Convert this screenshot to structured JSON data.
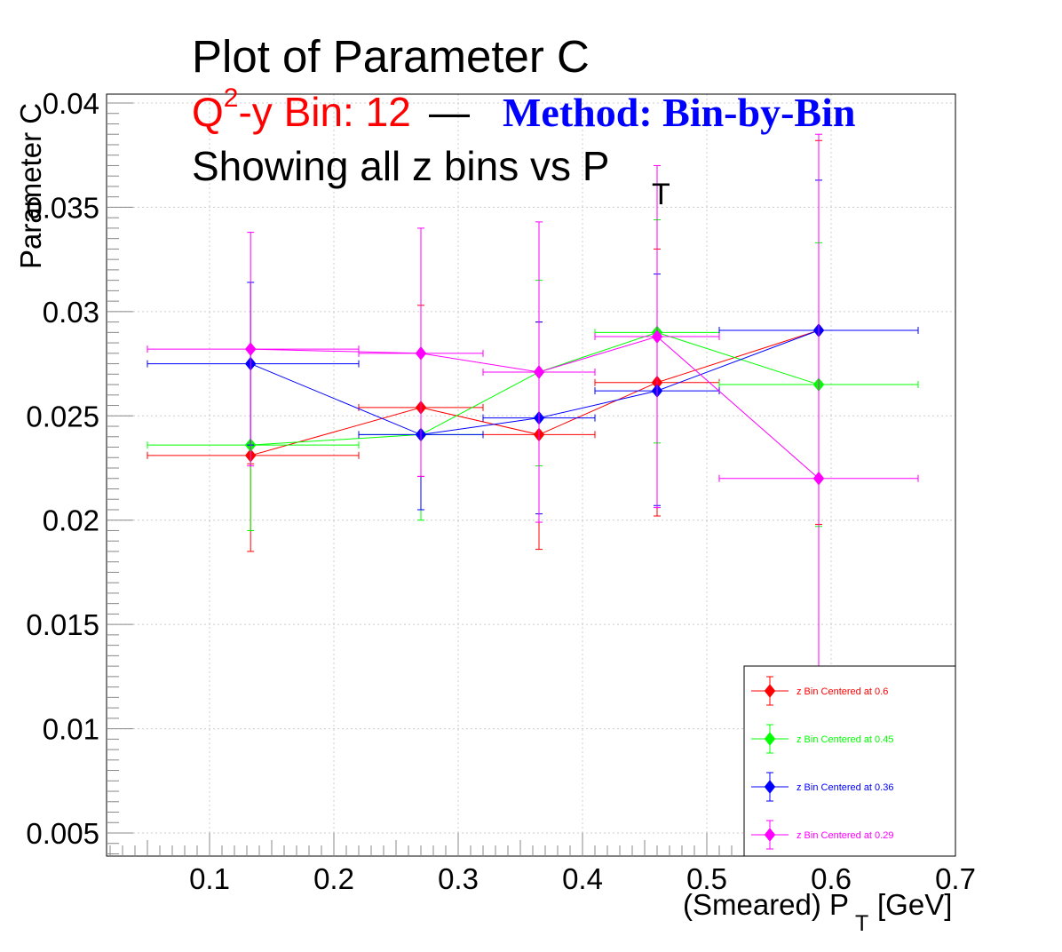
{
  "chart_data": {
    "type": "scatter",
    "title": "Plot of Parameter C",
    "subtitle": {
      "bin_label": "Q",
      "bin_label_sup": "2",
      "bin_label_rest": "-y Bin: 12",
      "dash": "—",
      "method": "Method: Bin-by-Bin",
      "line3": "Showing all z bins vs P",
      "line3_sub": "T"
    },
    "xlabel": "(Smeared) P",
    "xlabel_sub": "T",
    "xlabel_unit": "[GeV]",
    "ylabel": "Parameter C",
    "xlim": [
      0.015,
      0.7
    ],
    "ylim": [
      0.004,
      0.0405
    ],
    "x_ticks": [
      {
        "v": 0.1,
        "label": "0.1"
      },
      {
        "v": 0.2,
        "label": "0.2"
      },
      {
        "v": 0.3,
        "label": "0.3"
      },
      {
        "v": 0.4,
        "label": "0.4"
      },
      {
        "v": 0.5,
        "label": "0.5"
      },
      {
        "v": 0.6,
        "label": "0.6"
      },
      {
        "v": 0.7,
        "label": "0.7"
      }
    ],
    "y_ticks": [
      {
        "v": 0.005,
        "label": "0.005"
      },
      {
        "v": 0.01,
        "label": "0.01"
      },
      {
        "v": 0.015,
        "label": "0.015"
      },
      {
        "v": 0.02,
        "label": "0.02"
      },
      {
        "v": 0.025,
        "label": "0.025"
      },
      {
        "v": 0.03,
        "label": "0.03"
      },
      {
        "v": 0.035,
        "label": "0.035"
      },
      {
        "v": 0.04,
        "label": "0.04"
      }
    ],
    "grid": true,
    "legend_position": "bottom-right",
    "colors": {
      "title": "#000000",
      "bin_label": "#ff0000",
      "method": "#0000ff"
    },
    "series": [
      {
        "name": "z Bin Centered at 0.6",
        "color": "#ff0000",
        "points": [
          {
            "x": 0.133,
            "y": 0.0231,
            "xlo": 0.05,
            "xhi": 0.22,
            "ylo": 0.0185,
            "yhi": 0.0227
          },
          {
            "x": 0.27,
            "y": 0.0254,
            "xlo": 0.22,
            "xhi": 0.32,
            "ylo": 0.0221,
            "yhi": 0.0303
          },
          {
            "x": 0.365,
            "y": 0.0241,
            "xlo": 0.32,
            "xhi": 0.41,
            "ylo": 0.0186,
            "yhi": 0.0295
          },
          {
            "x": 0.46,
            "y": 0.0266,
            "xlo": 0.41,
            "xhi": 0.51,
            "ylo": 0.0202,
            "yhi": 0.033
          },
          {
            "x": 0.59,
            "y": 0.0291,
            "xlo": 0.51,
            "xhi": 0.67,
            "ylo": 0.0198,
            "yhi": 0.0382
          }
        ]
      },
      {
        "name": "z Bin Centered at 0.45",
        "color": "#00ff00",
        "points": [
          {
            "x": 0.133,
            "y": 0.0236,
            "xlo": 0.05,
            "xhi": 0.22,
            "ylo": 0.0195,
            "yhi": 0.0236
          },
          {
            "x": 0.27,
            "y": 0.0241,
            "xlo": 0.22,
            "xhi": 0.32,
            "ylo": 0.02,
            "yhi": 0.0241
          },
          {
            "x": 0.365,
            "y": 0.0271,
            "xlo": 0.32,
            "xhi": 0.41,
            "ylo": 0.0226,
            "yhi": 0.0315
          },
          {
            "x": 0.46,
            "y": 0.029,
            "xlo": 0.41,
            "xhi": 0.51,
            "ylo": 0.0237,
            "yhi": 0.0344
          },
          {
            "x": 0.59,
            "y": 0.0265,
            "xlo": 0.51,
            "xhi": 0.67,
            "ylo": 0.0197,
            "yhi": 0.0333
          }
        ]
      },
      {
        "name": "z Bin Centered at 0.36",
        "color": "#0000ff",
        "points": [
          {
            "x": 0.133,
            "y": 0.0275,
            "xlo": 0.05,
            "xhi": 0.22,
            "ylo": 0.0236,
            "yhi": 0.0314
          },
          {
            "x": 0.27,
            "y": 0.0241,
            "xlo": 0.22,
            "xhi": 0.32,
            "ylo": 0.0205,
            "yhi": 0.0241
          },
          {
            "x": 0.365,
            "y": 0.0249,
            "xlo": 0.32,
            "xhi": 0.41,
            "ylo": 0.0203,
            "yhi": 0.0295
          },
          {
            "x": 0.46,
            "y": 0.0262,
            "xlo": 0.41,
            "xhi": 0.51,
            "ylo": 0.0207,
            "yhi": 0.0318
          },
          {
            "x": 0.59,
            "y": 0.0291,
            "xlo": 0.51,
            "xhi": 0.67,
            "ylo": 0.0291,
            "yhi": 0.0363
          }
        ]
      },
      {
        "name": "z Bin Centered at 0.29",
        "color": "#ff00ff",
        "points": [
          {
            "x": 0.133,
            "y": 0.0282,
            "xlo": 0.05,
            "xhi": 0.22,
            "ylo": 0.0226,
            "yhi": 0.0338
          },
          {
            "x": 0.27,
            "y": 0.028,
            "xlo": 0.22,
            "xhi": 0.32,
            "ylo": 0.0221,
            "yhi": 0.034
          },
          {
            "x": 0.365,
            "y": 0.0271,
            "xlo": 0.32,
            "xhi": 0.41,
            "ylo": 0.0199,
            "yhi": 0.0343
          },
          {
            "x": 0.46,
            "y": 0.0288,
            "xlo": 0.41,
            "xhi": 0.51,
            "ylo": 0.0206,
            "yhi": 0.037
          },
          {
            "x": 0.59,
            "y": 0.022,
            "xlo": 0.51,
            "xhi": 0.67,
            "ylo": 0.0055,
            "yhi": 0.0385
          }
        ]
      }
    ]
  }
}
